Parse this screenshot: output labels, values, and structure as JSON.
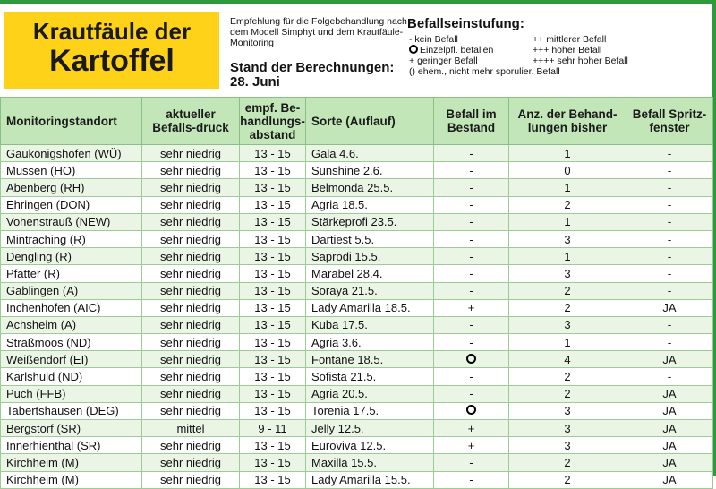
{
  "title": {
    "line1": "Krautfäule der",
    "line2": "Kartoffel"
  },
  "recommendation": "Empfehlung für die Folgebehandlung nach dem Modell Simphyt und dem Krautfäule-Monitoring",
  "calc": {
    "label": "Stand der Berechnungen:",
    "date": "28. Juni"
  },
  "legend": {
    "title": "Befallseinstufung:",
    "rows": [
      {
        "left_symbol": "-",
        "left_text": "kein Befall",
        "right_symbol": "++",
        "right_text": "mittlerer Befall"
      },
      {
        "left_symbol": "ring-icon",
        "left_text": "Einzelpfl. befallen",
        "right_symbol": "+++",
        "right_text": "hoher Befall"
      },
      {
        "left_symbol": "+",
        "left_text": "geringer Befall",
        "right_symbol": "++++",
        "right_text": "sehr hoher Befall"
      },
      {
        "left_symbol": "()",
        "left_text": "ehem., nicht mehr sporulier. Befall",
        "right_symbol": "",
        "right_text": ""
      }
    ]
  },
  "colors": {
    "header_bg": "#c3e6b9",
    "row_alt_bg": "#eaf5e6",
    "title_bg": "#ffd21a",
    "frame": "#2e9a3c"
  },
  "table": {
    "columns": [
      "Monitoringstandort",
      "aktueller Befalls-druck",
      "empf. Be-handlungs-abstand",
      "Sorte (Auflauf)",
      "Befall im Bestand",
      "Anz. der Behand-lungen bisher",
      "Befall Spritz-fenster"
    ],
    "rows": [
      {
        "site": "Gaukönigshofen (WÜ)",
        "pressure": "sehr niedrig",
        "interval": "13 - 15",
        "variety": "Gala 4.6.",
        "infestation": "-",
        "treatments": "1",
        "window": "-"
      },
      {
        "site": "Mussen (HO)",
        "pressure": "sehr niedrig",
        "interval": "13 - 15",
        "variety": "Sunshine 2.6.",
        "infestation": "-",
        "treatments": "0",
        "window": "-"
      },
      {
        "site": "Abenberg (RH)",
        "pressure": "sehr niedrig",
        "interval": "13 - 15",
        "variety": "Belmonda 25.5.",
        "infestation": "-",
        "treatments": "1",
        "window": "-"
      },
      {
        "site": "Ehringen (DON)",
        "pressure": "sehr niedrig",
        "interval": "13 - 15",
        "variety": "Agria 18.5.",
        "infestation": "-",
        "treatments": "2",
        "window": "-"
      },
      {
        "site": "Vohenstrauß (NEW)",
        "pressure": "sehr niedrig",
        "interval": "13 - 15",
        "variety": "Stärkeprofi 23.5.",
        "infestation": "-",
        "treatments": "1",
        "window": "-"
      },
      {
        "site": "Mintraching (R)",
        "pressure": "sehr niedrig",
        "interval": "13 - 15",
        "variety": "Dartiest 5.5.",
        "infestation": "-",
        "treatments": "3",
        "window": "-"
      },
      {
        "site": "Dengling (R)",
        "pressure": "sehr niedrig",
        "interval": "13 - 15",
        "variety": "Saprodi 15.5.",
        "infestation": "-",
        "treatments": "1",
        "window": "-"
      },
      {
        "site": "Pfatter (R)",
        "pressure": "sehr niedrig",
        "interval": "13 - 15",
        "variety": "Marabel 28.4.",
        "infestation": "-",
        "treatments": "3",
        "window": "-"
      },
      {
        "site": "Gablingen (A)",
        "pressure": "sehr niedrig",
        "interval": "13 - 15",
        "variety": "Soraya 21.5.",
        "infestation": "-",
        "treatments": "2",
        "window": "-"
      },
      {
        "site": "Inchenhofen (AIC)",
        "pressure": "sehr niedrig",
        "interval": "13 - 15",
        "variety": "Lady Amarilla 18.5.",
        "infestation": "+",
        "treatments": "2",
        "window": "JA"
      },
      {
        "site": "Achsheim (A)",
        "pressure": "sehr niedrig",
        "interval": "13 - 15",
        "variety": "Kuba 17.5.",
        "infestation": "-",
        "treatments": "3",
        "window": "-"
      },
      {
        "site": "Straßmoos (ND)",
        "pressure": "sehr niedrig",
        "interval": "13 - 15",
        "variety": "Agria 3.6.",
        "infestation": "-",
        "treatments": "1",
        "window": "-"
      },
      {
        "site": "Weißendorf (EI)",
        "pressure": "sehr niedrig",
        "interval": "13 - 15",
        "variety": "Fontane 18.5.",
        "infestation": "ring-icon",
        "treatments": "4",
        "window": "JA"
      },
      {
        "site": "Karlshuld (ND)",
        "pressure": "sehr niedrig",
        "interval": "13 - 15",
        "variety": "Sofista 21.5.",
        "infestation": "-",
        "treatments": "2",
        "window": "-"
      },
      {
        "site": "Puch (FFB)",
        "pressure": "sehr niedrig",
        "interval": "13 - 15",
        "variety": "Agria 20.5.",
        "infestation": "-",
        "treatments": "2",
        "window": "JA"
      },
      {
        "site": "Tabertshausen (DEG)",
        "pressure": "sehr niedrig",
        "interval": "13 - 15",
        "variety": "Torenia 17.5.",
        "infestation": "ring-icon",
        "treatments": "3",
        "window": "JA"
      },
      {
        "site": "Bergstorf (SR)",
        "pressure": "mittel",
        "interval": "9 - 11",
        "variety": "Jelly 12.5.",
        "infestation": "+",
        "treatments": "3",
        "window": "JA"
      },
      {
        "site": "Innerhienthal (SR)",
        "pressure": "sehr niedrig",
        "interval": "13 - 15",
        "variety": "Euroviva 12.5.",
        "infestation": "+",
        "treatments": "3",
        "window": "JA"
      },
      {
        "site": "Kirchheim (M)",
        "pressure": "sehr niedrig",
        "interval": "13 - 15",
        "variety": "Maxilla 15.5.",
        "infestation": "-",
        "treatments": "2",
        "window": "JA"
      },
      {
        "site": "Kirchheim (M)",
        "pressure": "sehr niedrig",
        "interval": "13 - 15",
        "variety": "Lady Amarilla 15.5.",
        "infestation": "-",
        "treatments": "2",
        "window": "JA"
      }
    ]
  }
}
